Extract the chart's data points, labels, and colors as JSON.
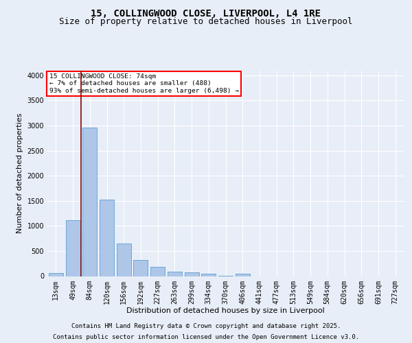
{
  "title_line1": "15, COLLINGWOOD CLOSE, LIVERPOOL, L4 1RE",
  "title_line2": "Size of property relative to detached houses in Liverpool",
  "xlabel": "Distribution of detached houses by size in Liverpool",
  "ylabel": "Number of detached properties",
  "annotation_line1": "15 COLLINGWOOD CLOSE: 74sqm",
  "annotation_line2": "← 7% of detached houses are smaller (488)",
  "annotation_line3": "93% of semi-detached houses are larger (6,498) →",
  "footer_line1": "Contains HM Land Registry data © Crown copyright and database right 2025.",
  "footer_line2": "Contains public sector information licensed under the Open Government Licence v3.0.",
  "bin_labels": [
    "13sqm",
    "49sqm",
    "84sqm",
    "120sqm",
    "156sqm",
    "192sqm",
    "227sqm",
    "263sqm",
    "299sqm",
    "334sqm",
    "370sqm",
    "406sqm",
    "441sqm",
    "477sqm",
    "513sqm",
    "549sqm",
    "584sqm",
    "620sqm",
    "656sqm",
    "691sqm",
    "727sqm"
  ],
  "bar_values": [
    55,
    1110,
    2960,
    1530,
    650,
    325,
    185,
    90,
    70,
    45,
    10,
    45,
    0,
    0,
    0,
    0,
    0,
    0,
    0,
    0,
    0
  ],
  "bar_color": "#aec6e8",
  "bar_edge_color": "#5a9fd4",
  "ylim": [
    0,
    4100
  ],
  "yticks": [
    0,
    500,
    1000,
    1500,
    2000,
    2500,
    3000,
    3500,
    4000
  ],
  "background_color": "#e8eef7",
  "grid_color": "#ffffff",
  "title_fontsize": 10,
  "subtitle_fontsize": 9,
  "axis_label_fontsize": 8,
  "tick_fontsize": 7,
  "footer_fontsize": 6.5
}
